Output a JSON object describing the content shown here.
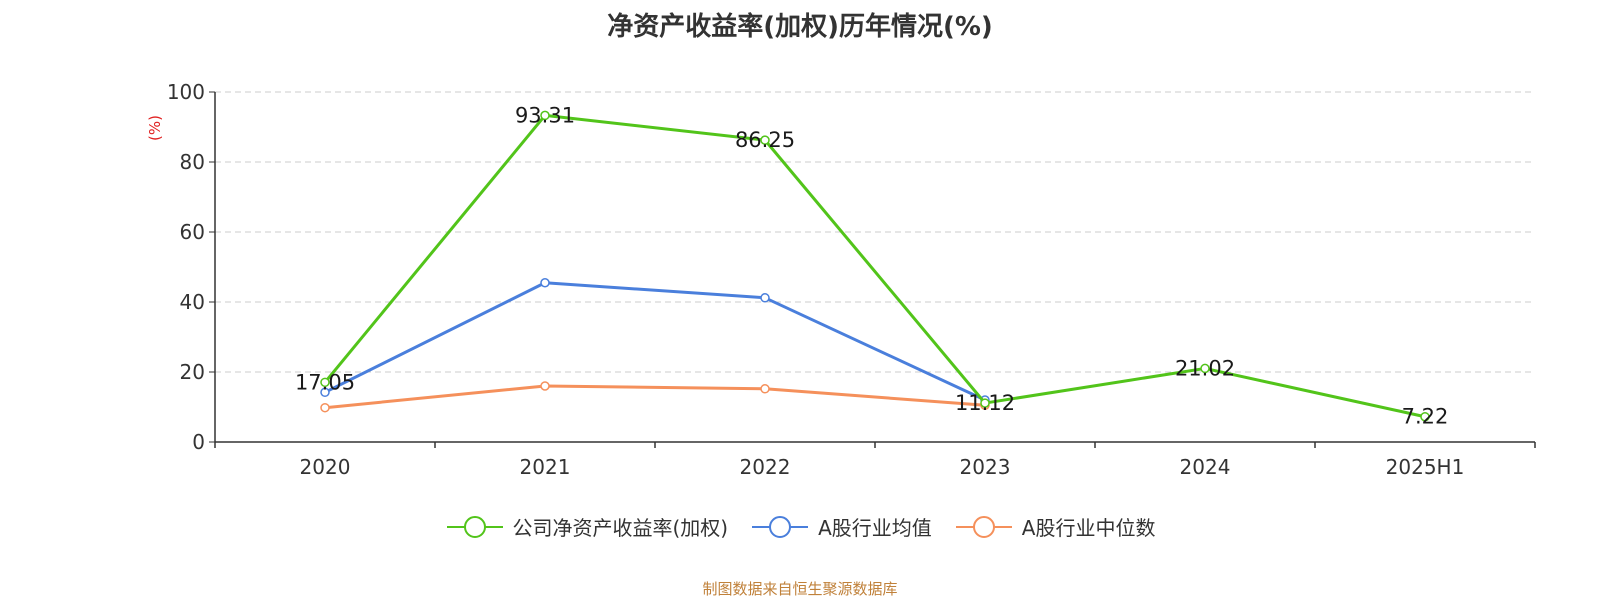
{
  "chart_data": {
    "type": "line",
    "title": "净资产收益率(加权)历年情况(%)",
    "ylabel": "(%)",
    "xlabel": "",
    "categories": [
      "2020",
      "2021",
      "2022",
      "2023",
      "2024",
      "2025H1"
    ],
    "ylim": [
      0,
      100
    ],
    "yticks": [
      0,
      20,
      40,
      60,
      80,
      100
    ],
    "grid": true,
    "legend": "bottom",
    "series": [
      {
        "name": "公司净资产收益率(加权)",
        "color": "#52c41a",
        "values": [
          17.05,
          93.31,
          86.25,
          11.12,
          21.02,
          7.22
        ],
        "labels": [
          "17.05",
          "93.31",
          "86.25",
          "11.12",
          "21.02",
          "7.22"
        ]
      },
      {
        "name": "A股行业均值",
        "color": "#4a7fdc",
        "values": [
          14.2,
          45.5,
          41.2,
          12.0,
          null,
          null
        ]
      },
      {
        "name": "A股行业中位数",
        "color": "#f5905b",
        "values": [
          9.8,
          16.0,
          15.2,
          10.5,
          null,
          null
        ]
      }
    ]
  },
  "source": "制图数据来自恒生聚源数据库"
}
